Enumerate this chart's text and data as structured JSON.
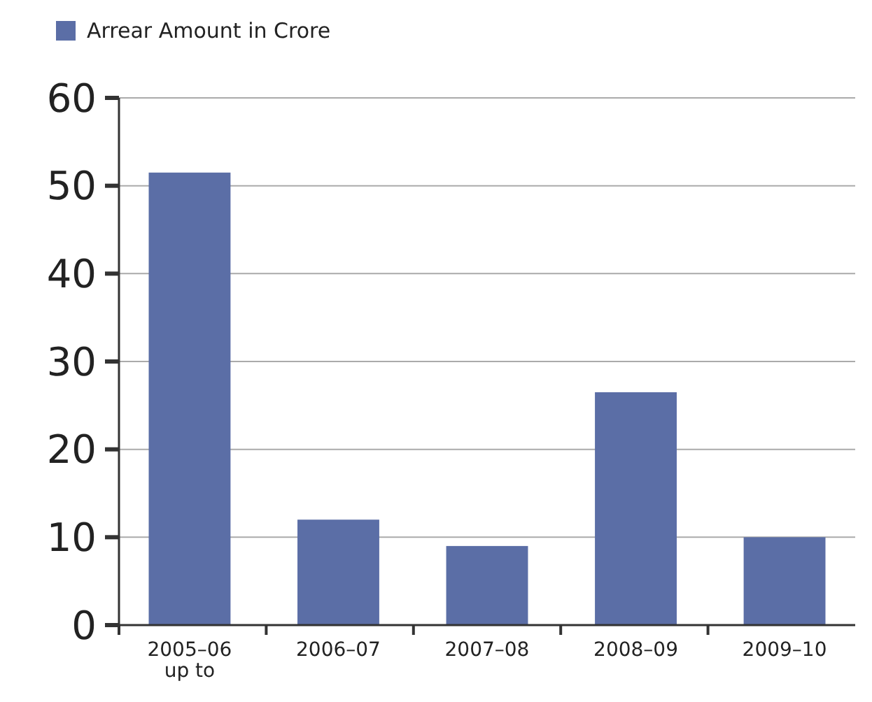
{
  "chart_data": {
    "type": "bar",
    "categories": [
      "2005–06 up to",
      "2006–07",
      "2007–08",
      "2008–09",
      "2009–10"
    ],
    "series": [
      {
        "name": "Arrear Amount in Crore",
        "color": "#5b6ea6",
        "values": [
          51.5,
          12,
          9,
          26.5,
          10
        ]
      }
    ],
    "ylim": [
      0,
      60
    ],
    "yticks": [
      0,
      10,
      20,
      30,
      40,
      50,
      60
    ],
    "grid": "y",
    "legend": "top left"
  }
}
